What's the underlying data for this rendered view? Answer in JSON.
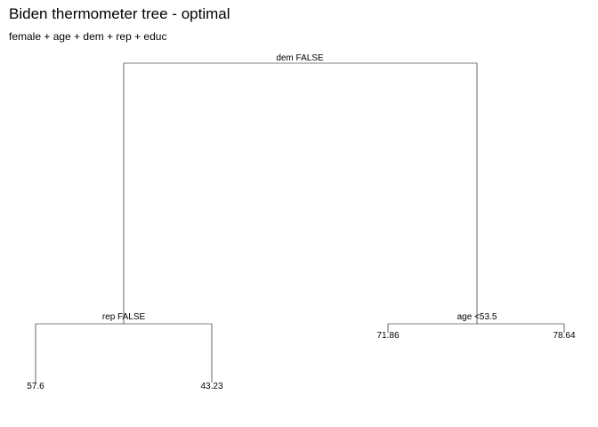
{
  "title": "Biden thermometer tree - optimal",
  "subtitle": "female + age + dem + rep + educ",
  "tree": {
    "root": {
      "split": "dem FALSE",
      "left": {
        "split": "rep FALSE",
        "left_leaf": "57.6",
        "right_leaf": "43.23"
      },
      "right": {
        "split": "age <53.5",
        "left_leaf": "71.86",
        "right_leaf": "78.64"
      }
    }
  }
}
